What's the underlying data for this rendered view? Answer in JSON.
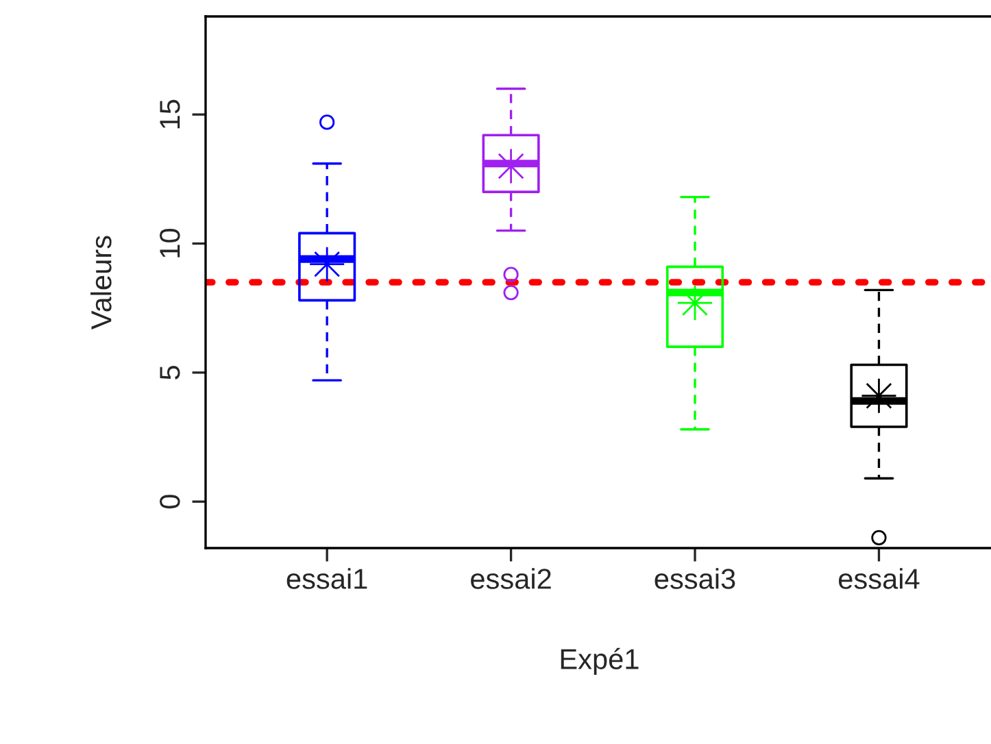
{
  "chart_data": {
    "type": "box",
    "xlabel": "Expé1",
    "ylabel": "Valeurs",
    "categories": [
      "essai1",
      "essai2",
      "essai3",
      "essai4"
    ],
    "colors": [
      "#0000ff",
      "#a020f0",
      "#00ff00",
      "#000000"
    ],
    "boxes": [
      {
        "low": 4.7,
        "q1": 7.8,
        "median": 9.4,
        "q3": 10.4,
        "high": 13.1,
        "mean": 9.2,
        "outliers": [
          14.7
        ]
      },
      {
        "low": 10.5,
        "q1": 12.0,
        "median": 13.1,
        "q3": 14.2,
        "high": 16.0,
        "mean": 13.0,
        "outliers": [
          8.8,
          8.1
        ]
      },
      {
        "low": 2.8,
        "q1": 6.0,
        "median": 8.1,
        "q3": 9.1,
        "high": 11.8,
        "mean": 7.7
      },
      {
        "low": 0.9,
        "q1": 2.9,
        "median": 3.9,
        "q3": 5.3,
        "high": 8.2,
        "mean": 4.1,
        "outliers": [
          -1.4
        ]
      }
    ],
    "ylim": [
      -1.8,
      18.8
    ],
    "yticks": [
      0,
      5,
      10,
      15
    ],
    "ref_lines": [
      {
        "axis": "y",
        "value": 8.5,
        "color": "#ff0000",
        "line_style": "dotted"
      }
    ],
    "line_style": "dashed",
    "grid": false,
    "legend": false
  }
}
